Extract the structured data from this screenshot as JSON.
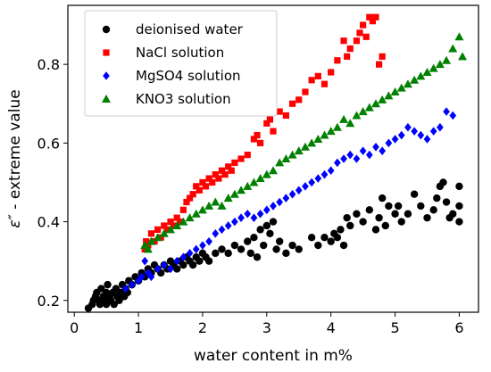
{
  "chart_data": {
    "type": "scatter",
    "xlabel": "water content in m%",
    "ylabel_prefix": "ε″",
    "ylabel_suffix": " - extreme value",
    "xlim": [
      -0.1,
      6.3
    ],
    "ylim": [
      0.17,
      0.95
    ],
    "x_ticks": [
      0,
      1,
      2,
      3,
      4,
      5,
      6
    ],
    "y_ticks": [
      0.2,
      0.4,
      0.6,
      0.8
    ],
    "y_tick_labels": [
      "0.2",
      "0.4",
      "0.6",
      "0.8"
    ],
    "legend_position": "upper-left",
    "series": [
      {
        "name": "deionised water",
        "color": "#000000",
        "marker": "circle",
        "points": [
          [
            0.22,
            0.18
          ],
          [
            0.28,
            0.19
          ],
          [
            0.3,
            0.2
          ],
          [
            0.33,
            0.21
          ],
          [
            0.35,
            0.22
          ],
          [
            0.38,
            0.2
          ],
          [
            0.4,
            0.19
          ],
          [
            0.42,
            0.23
          ],
          [
            0.45,
            0.21
          ],
          [
            0.47,
            0.2
          ],
          [
            0.5,
            0.22
          ],
          [
            0.5,
            0.19
          ],
          [
            0.52,
            0.24
          ],
          [
            0.55,
            0.21
          ],
          [
            0.57,
            0.2
          ],
          [
            0.6,
            0.22
          ],
          [
            0.62,
            0.19
          ],
          [
            0.65,
            0.23
          ],
          [
            0.67,
            0.21
          ],
          [
            0.7,
            0.2
          ],
          [
            0.72,
            0.22
          ],
          [
            0.75,
            0.24
          ],
          [
            0.78,
            0.21
          ],
          [
            0.8,
            0.23
          ],
          [
            0.83,
            0.22
          ],
          [
            0.85,
            0.25
          ],
          [
            0.9,
            0.24
          ],
          [
            0.95,
            0.26
          ],
          [
            1.0,
            0.25
          ],
          [
            1.05,
            0.27
          ],
          [
            1.1,
            0.26
          ],
          [
            1.15,
            0.28
          ],
          [
            1.2,
            0.27
          ],
          [
            1.25,
            0.29
          ],
          [
            1.3,
            0.28
          ],
          [
            1.35,
            0.27
          ],
          [
            1.4,
            0.29
          ],
          [
            1.45,
            0.28
          ],
          [
            1.5,
            0.3
          ],
          [
            1.55,
            0.29
          ],
          [
            1.6,
            0.28
          ],
          [
            1.65,
            0.3
          ],
          [
            1.7,
            0.29
          ],
          [
            1.75,
            0.31
          ],
          [
            1.8,
            0.3
          ],
          [
            1.85,
            0.29
          ],
          [
            1.9,
            0.31
          ],
          [
            1.95,
            0.3
          ],
          [
            2.0,
            0.32
          ],
          [
            2.05,
            0.31
          ],
          [
            2.1,
            0.3
          ],
          [
            2.2,
            0.32
          ],
          [
            2.3,
            0.33
          ],
          [
            2.4,
            0.32
          ],
          [
            2.5,
            0.34
          ],
          [
            2.6,
            0.33
          ],
          [
            2.7,
            0.35
          ],
          [
            2.75,
            0.32
          ],
          [
            2.8,
            0.36
          ],
          [
            2.85,
            0.31
          ],
          [
            2.9,
            0.38
          ],
          [
            2.95,
            0.34
          ],
          [
            3.0,
            0.39
          ],
          [
            3.05,
            0.37
          ],
          [
            3.1,
            0.4
          ],
          [
            3.15,
            0.33
          ],
          [
            3.2,
            0.35
          ],
          [
            3.3,
            0.32
          ],
          [
            3.4,
            0.34
          ],
          [
            3.5,
            0.33
          ],
          [
            3.7,
            0.36
          ],
          [
            3.8,
            0.34
          ],
          [
            3.9,
            0.36
          ],
          [
            4.0,
            0.35
          ],
          [
            4.05,
            0.37
          ],
          [
            4.1,
            0.36
          ],
          [
            4.15,
            0.38
          ],
          [
            4.2,
            0.34
          ],
          [
            4.25,
            0.41
          ],
          [
            4.3,
            0.39
          ],
          [
            4.4,
            0.42
          ],
          [
            4.5,
            0.4
          ],
          [
            4.6,
            0.43
          ],
          [
            4.7,
            0.38
          ],
          [
            4.75,
            0.41
          ],
          [
            4.8,
            0.46
          ],
          [
            4.85,
            0.39
          ],
          [
            4.9,
            0.44
          ],
          [
            5.0,
            0.42
          ],
          [
            5.05,
            0.44
          ],
          [
            5.1,
            0.4
          ],
          [
            5.2,
            0.42
          ],
          [
            5.3,
            0.47
          ],
          [
            5.4,
            0.44
          ],
          [
            5.5,
            0.41
          ],
          [
            5.6,
            0.43
          ],
          [
            5.65,
            0.46
          ],
          [
            5.7,
            0.49
          ],
          [
            5.75,
            0.5
          ],
          [
            5.8,
            0.45
          ],
          [
            5.85,
            0.41
          ],
          [
            5.9,
            0.42
          ],
          [
            6.0,
            0.4
          ],
          [
            6.0,
            0.44
          ],
          [
            6.0,
            0.49
          ]
        ]
      },
      {
        "name": "NaCl solution",
        "color": "#ff0000",
        "marker": "square",
        "points": [
          [
            1.1,
            0.33
          ],
          [
            1.12,
            0.35
          ],
          [
            1.15,
            0.34
          ],
          [
            1.2,
            0.37
          ],
          [
            1.25,
            0.35
          ],
          [
            1.3,
            0.38
          ],
          [
            1.35,
            0.36
          ],
          [
            1.4,
            0.39
          ],
          [
            1.45,
            0.38
          ],
          [
            1.5,
            0.4
          ],
          [
            1.55,
            0.39
          ],
          [
            1.6,
            0.41
          ],
          [
            1.65,
            0.4
          ],
          [
            1.7,
            0.43
          ],
          [
            1.75,
            0.45
          ],
          [
            1.8,
            0.46
          ],
          [
            1.85,
            0.47
          ],
          [
            1.9,
            0.49
          ],
          [
            1.95,
            0.48
          ],
          [
            2.0,
            0.5
          ],
          [
            2.05,
            0.49
          ],
          [
            2.1,
            0.51
          ],
          [
            2.15,
            0.5
          ],
          [
            2.2,
            0.52
          ],
          [
            2.25,
            0.51
          ],
          [
            2.3,
            0.53
          ],
          [
            2.35,
            0.52
          ],
          [
            2.4,
            0.54
          ],
          [
            2.45,
            0.53
          ],
          [
            2.5,
            0.55
          ],
          [
            2.6,
            0.56
          ],
          [
            2.7,
            0.57
          ],
          [
            2.8,
            0.61
          ],
          [
            2.85,
            0.62
          ],
          [
            2.9,
            0.6
          ],
          [
            3.0,
            0.65
          ],
          [
            3.05,
            0.66
          ],
          [
            3.1,
            0.63
          ],
          [
            3.2,
            0.68
          ],
          [
            3.3,
            0.67
          ],
          [
            3.4,
            0.7
          ],
          [
            3.5,
            0.71
          ],
          [
            3.6,
            0.73
          ],
          [
            3.7,
            0.76
          ],
          [
            3.8,
            0.77
          ],
          [
            3.9,
            0.75
          ],
          [
            4.0,
            0.78
          ],
          [
            4.1,
            0.81
          ],
          [
            4.2,
            0.86
          ],
          [
            4.25,
            0.82
          ],
          [
            4.3,
            0.84
          ],
          [
            4.4,
            0.86
          ],
          [
            4.45,
            0.88
          ],
          [
            4.5,
            0.9
          ],
          [
            4.55,
            0.87
          ],
          [
            4.6,
            0.92
          ],
          [
            4.65,
            0.91
          ],
          [
            4.7,
            0.92
          ],
          [
            4.75,
            0.8
          ],
          [
            4.8,
            0.82
          ]
        ]
      },
      {
        "name": "MgSO4 solution",
        "color": "#0000ff",
        "marker": "diamond",
        "points": [
          [
            0.8,
            0.23
          ],
          [
            0.9,
            0.24
          ],
          [
            1.0,
            0.25
          ],
          [
            1.05,
            0.26
          ],
          [
            1.1,
            0.3
          ],
          [
            1.15,
            0.27
          ],
          [
            1.2,
            0.26
          ],
          [
            1.3,
            0.28
          ],
          [
            1.4,
            0.29
          ],
          [
            1.5,
            0.28
          ],
          [
            1.6,
            0.3
          ],
          [
            1.7,
            0.31
          ],
          [
            1.8,
            0.32
          ],
          [
            1.9,
            0.33
          ],
          [
            2.0,
            0.34
          ],
          [
            2.1,
            0.35
          ],
          [
            2.2,
            0.37
          ],
          [
            2.3,
            0.38
          ],
          [
            2.4,
            0.39
          ],
          [
            2.5,
            0.4
          ],
          [
            2.6,
            0.41
          ],
          [
            2.7,
            0.42
          ],
          [
            2.8,
            0.41
          ],
          [
            2.9,
            0.42
          ],
          [
            3.0,
            0.43
          ],
          [
            3.1,
            0.44
          ],
          [
            3.2,
            0.45
          ],
          [
            3.3,
            0.46
          ],
          [
            3.4,
            0.47
          ],
          [
            3.5,
            0.48
          ],
          [
            3.6,
            0.49
          ],
          [
            3.7,
            0.5
          ],
          [
            3.8,
            0.51
          ],
          [
            3.9,
            0.52
          ],
          [
            4.0,
            0.53
          ],
          [
            4.1,
            0.55
          ],
          [
            4.2,
            0.56
          ],
          [
            4.3,
            0.57
          ],
          [
            4.4,
            0.56
          ],
          [
            4.5,
            0.58
          ],
          [
            4.6,
            0.57
          ],
          [
            4.7,
            0.59
          ],
          [
            4.8,
            0.58
          ],
          [
            4.9,
            0.6
          ],
          [
            5.0,
            0.61
          ],
          [
            5.1,
            0.62
          ],
          [
            5.2,
            0.64
          ],
          [
            5.3,
            0.63
          ],
          [
            5.4,
            0.62
          ],
          [
            5.5,
            0.61
          ],
          [
            5.6,
            0.63
          ],
          [
            5.7,
            0.64
          ],
          [
            5.8,
            0.68
          ],
          [
            5.9,
            0.67
          ]
        ]
      },
      {
        "name": "KNO3 solution",
        "color": "#008000",
        "marker": "triangle",
        "points": [
          [
            1.1,
            0.34
          ],
          [
            1.15,
            0.33
          ],
          [
            1.2,
            0.35
          ],
          [
            1.3,
            0.36
          ],
          [
            1.4,
            0.37
          ],
          [
            1.5,
            0.38
          ],
          [
            1.6,
            0.39
          ],
          [
            1.7,
            0.4
          ],
          [
            1.8,
            0.41
          ],
          [
            1.9,
            0.42
          ],
          [
            2.0,
            0.43
          ],
          [
            2.1,
            0.44
          ],
          [
            2.2,
            0.45
          ],
          [
            2.3,
            0.44
          ],
          [
            2.4,
            0.46
          ],
          [
            2.5,
            0.47
          ],
          [
            2.6,
            0.48
          ],
          [
            2.7,
            0.49
          ],
          [
            2.8,
            0.5
          ],
          [
            2.9,
            0.51
          ],
          [
            3.0,
            0.52
          ],
          [
            3.1,
            0.53
          ],
          [
            3.2,
            0.55
          ],
          [
            3.3,
            0.56
          ],
          [
            3.4,
            0.57
          ],
          [
            3.5,
            0.58
          ],
          [
            3.6,
            0.59
          ],
          [
            3.7,
            0.6
          ],
          [
            3.8,
            0.61
          ],
          [
            3.9,
            0.62
          ],
          [
            4.0,
            0.63
          ],
          [
            4.1,
            0.64
          ],
          [
            4.2,
            0.66
          ],
          [
            4.3,
            0.65
          ],
          [
            4.4,
            0.67
          ],
          [
            4.5,
            0.68
          ],
          [
            4.6,
            0.69
          ],
          [
            4.7,
            0.7
          ],
          [
            4.8,
            0.71
          ],
          [
            4.9,
            0.72
          ],
          [
            5.0,
            0.73
          ],
          [
            5.1,
            0.74
          ],
          [
            5.2,
            0.75
          ],
          [
            5.3,
            0.76
          ],
          [
            5.4,
            0.77
          ],
          [
            5.5,
            0.78
          ],
          [
            5.6,
            0.79
          ],
          [
            5.7,
            0.8
          ],
          [
            5.8,
            0.81
          ],
          [
            5.9,
            0.84
          ],
          [
            6.0,
            0.87
          ],
          [
            6.05,
            0.82
          ]
        ]
      }
    ]
  }
}
